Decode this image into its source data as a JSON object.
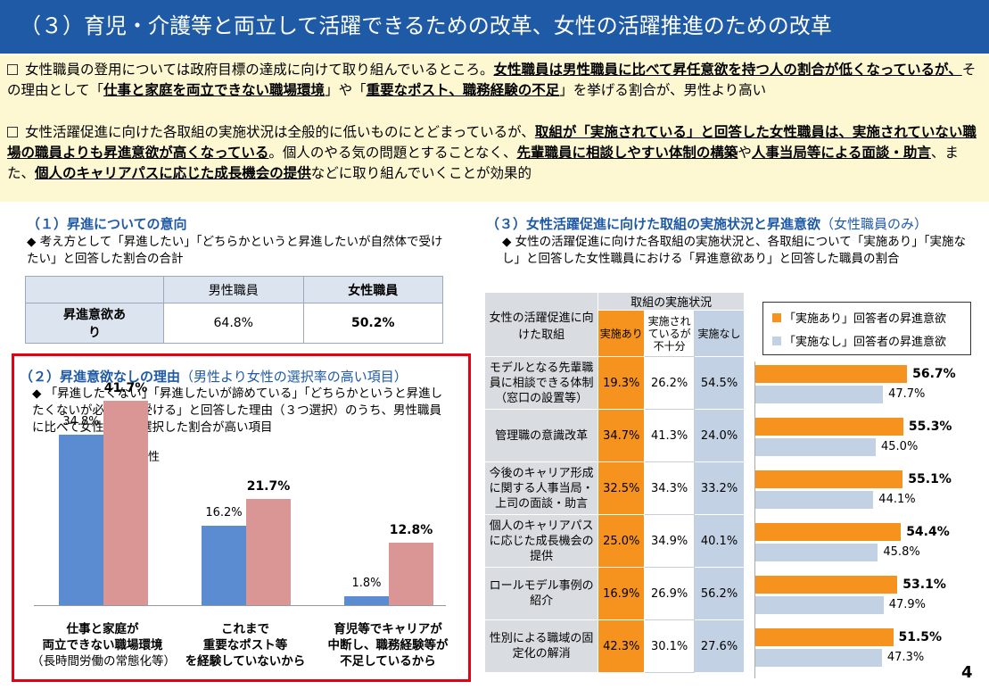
{
  "title": "（３）育児・介護等と両立して活躍できるための改革、女性の活躍推進のための改革",
  "summary": {
    "p1": [
      {
        "t": "女性職員の登用については政府目標の達成に向けて取り組んでいるところ。",
        "em": false
      },
      {
        "t": "女性職員は男性職員に比べて昇任意欲を持つ人の割合が低くなっているが、",
        "em": true
      },
      {
        "t": "その理由として「",
        "em": false
      },
      {
        "t": "仕事と家庭を両立できない職場環境",
        "em": true
      },
      {
        "t": "」や「",
        "em": false
      },
      {
        "t": "重要なポスト、職務経験の不足",
        "em": true
      },
      {
        "t": "」を挙げる割合が、男性より高い",
        "em": false
      }
    ],
    "p2": [
      {
        "t": "女性活躍促進に向けた各取組の実施状況は全般的に低いものにとどまっているが、",
        "em": false
      },
      {
        "t": "取組が「実施されている」と回答した女性職員は、実施されていない職場の職員よりも昇進意欲が高くなっている",
        "em": true
      },
      {
        "t": "。個人のやる気の問題とすることなく、",
        "em": false
      },
      {
        "t": "先輩職員に相談しやすい体制の構築",
        "em": true
      },
      {
        "t": "や",
        "em": false
      },
      {
        "t": "人事当局等による面談・助言",
        "em": true
      },
      {
        "t": "、また、",
        "em": false
      },
      {
        "t": "個人のキャリアパスに応じた成長機会の提供",
        "em": true
      },
      {
        "t": "などに取り組んでいくことが効果的",
        "em": false
      }
    ]
  },
  "s1": {
    "heading": "（１）昇進についての意向",
    "note": "◆ 考え方として「昇進したい」「どちらかというと昇進したいが自然体で受けたい」と回答した割合の合計",
    "cols": [
      "男性職員",
      "女性職員"
    ],
    "row_label": "昇進意欲あり",
    "values": [
      "64.8%",
      "50.2%"
    ]
  },
  "s2": {
    "heading": "（２）昇進意欲なしの理由",
    "heading_paren": "（男性より女性の選択率の高い項目）",
    "note": "◆ 「昇進したくない」「昇進したいが諦めている」「どちらかというと昇進したくないが必要なら受ける」と回答した理由（３つ選択）のうち、男性職員に比べて女性職員が選択した割合が高い項目",
    "legend": [
      "男性",
      "女性"
    ]
  },
  "chart_data": [
    {
      "type": "bar",
      "categories": [
        "仕事と家庭が両立できない職場環境（長時間労働の常態化等）",
        "これまで重要なポスト等を経験していないから",
        "育児等でキャリアが中断し、職務経験等が不足しているから"
      ],
      "series": [
        {
          "name": "男性",
          "values": [
            34.8,
            16.2,
            1.8
          ],
          "labels": [
            "34.8%",
            "16.2%",
            "1.8%"
          ]
        },
        {
          "name": "女性",
          "values": [
            41.7,
            21.7,
            12.8
          ],
          "labels": [
            "41.7%",
            "21.7%",
            "12.8%"
          ]
        }
      ],
      "colors": [
        "#5b8bd0",
        "#d99694"
      ],
      "ylim": [
        0,
        50
      ],
      "category_lines": [
        [
          "仕事と家庭が",
          "両立できない職場環境",
          "（長時間労働の常態化等）"
        ],
        [
          "これまで",
          "重要なポスト等",
          "を経験していないから"
        ],
        [
          "育児等でキャリアが",
          "中断し、職務経験等が",
          "不足しているから"
        ]
      ]
    },
    {
      "type": "bar",
      "orientation": "horizontal",
      "categories": [
        "モデルとなる先輩職員に相談できる体制（窓口の設置等）",
        "管理職の意識改革",
        "今後のキャリア形成に関する人事当局・上司の面談・助言",
        "個人のキャリアパスに応じた成長機会の提供",
        "ロールモデル事例の紹介",
        "性別による職域の固定化の解消"
      ],
      "series": [
        {
          "name": "「実施あり」回答者の昇進意欲",
          "values": [
            56.7,
            55.3,
            55.1,
            54.4,
            53.1,
            51.5
          ],
          "labels": [
            "56.7%",
            "55.3%",
            "55.1%",
            "54.4%",
            "53.1%",
            "51.5%"
          ]
        },
        {
          "name": "「実施なし」回答者の昇進意欲",
          "values": [
            47.7,
            45.0,
            44.1,
            45.8,
            47.9,
            47.3
          ],
          "labels": [
            "47.7%",
            "45.0%",
            "44.1%",
            "45.8%",
            "47.9%",
            "47.3%"
          ]
        }
      ],
      "colors": [
        "#f6931e",
        "#c3d1e4"
      ],
      "xlim": [
        0,
        60
      ]
    }
  ],
  "s3": {
    "heading": "（３）女性活躍促進に向けた取組の実施状況と昇進意欲",
    "heading_paren": "（女性職員のみ）",
    "note": "◆ 女性の活躍促進に向けた各取組の実施状況と、各取組について「実施あり」「実施なし」と回答した女性職員における「昇進意欲あり」と回答した職員の割合",
    "table_head": {
      "corner": "女性の活躍促進に向けた取組",
      "group": "取組の実施状況",
      "cols": [
        "実施あり",
        "実施されているが不十分",
        "実施なし"
      ]
    },
    "rows": [
      {
        "item": "モデルとなる先輩職員に相談できる体制（窓口の設置等）",
        "vals": [
          "19.3%",
          "26.2%",
          "54.5%"
        ]
      },
      {
        "item": "管理職の意識改革",
        "vals": [
          "34.7%",
          "41.3%",
          "24.0%"
        ]
      },
      {
        "item": "今後のキャリア形成に関する人事当局・上司の面談・助言",
        "vals": [
          "32.5%",
          "34.3%",
          "33.2%"
        ]
      },
      {
        "item": "個人のキャリアパスに応じた成長機会の提供",
        "vals": [
          "25.0%",
          "34.9%",
          "40.1%"
        ]
      },
      {
        "item": "ロールモデル事例の紹介",
        "vals": [
          "16.9%",
          "26.9%",
          "56.2%"
        ]
      },
      {
        "item": "性別による職域の固定化の解消",
        "vals": [
          "42.3%",
          "30.1%",
          "27.6%"
        ]
      }
    ],
    "legend": [
      "「実施あり」回答者の昇進意欲",
      "「実施なし」回答者の昇進意欲"
    ]
  },
  "page_number": "4"
}
